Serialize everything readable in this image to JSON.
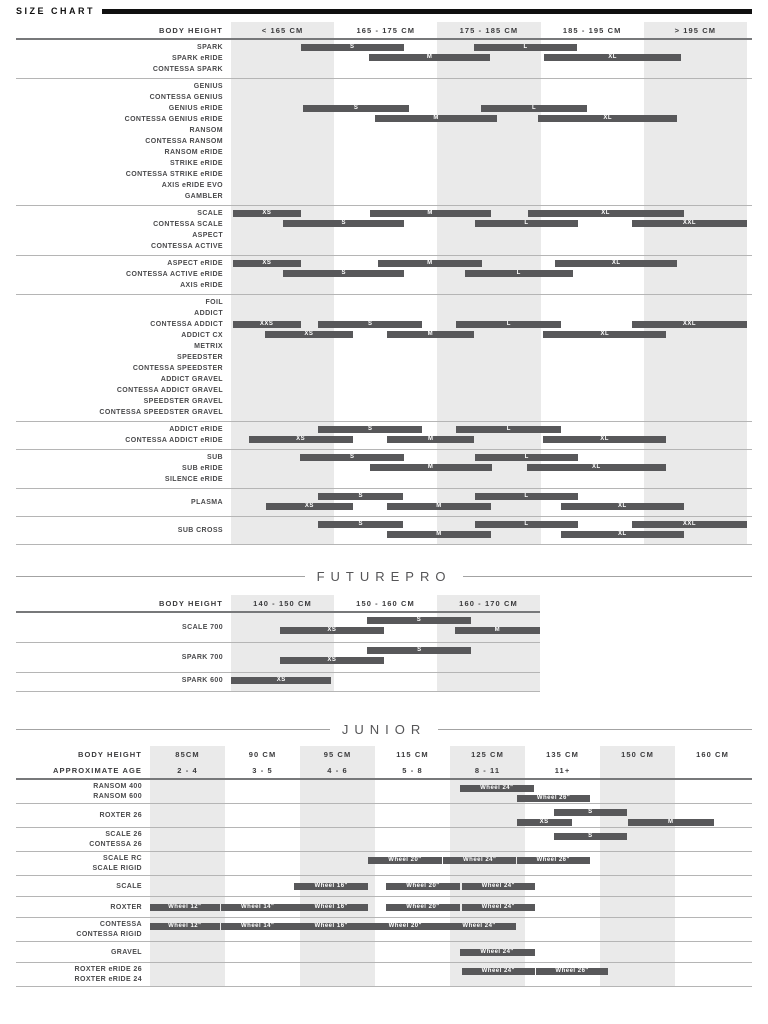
{
  "page": {
    "title": "SIZE CHART"
  },
  "chart_data": {
    "type": "table",
    "description": "Bike frame size ranges (gantt-style bars) per model family versus rider body height",
    "colors": {
      "bar": "#58585a",
      "stripe": "#eaeaea",
      "rule_dark": "#77787a",
      "rule_light": "#b5b5b5",
      "banner": "#101010"
    },
    "sections": [
      {
        "id": "main",
        "title": "",
        "header": {
          "rows": [
            {
              "label": "BODY HEIGHT",
              "values": [
                "< 165 CM",
                "165 - 175 CM",
                "175 - 185 CM",
                "185 - 195 CM",
                "> 195 CM"
              ]
            }
          ]
        },
        "groups": [
          {
            "models": [
              "SPARK",
              "SPARK eRIDE",
              "CONTESSA SPARK"
            ],
            "offset": 0,
            "bars": [
              {
                "size": "S",
                "row": 0,
                "from": 13.5,
                "to": 33.5
              },
              {
                "size": "M",
                "row": 1,
                "from": 26.8,
                "to": 50.2
              },
              {
                "size": "L",
                "row": 0,
                "from": 47.1,
                "to": 67.1
              },
              {
                "size": "XL",
                "row": 1,
                "from": 60.7,
                "to": 87.2
              }
            ]
          },
          {
            "models": [
              "GENIUS",
              "CONTESSA GENIUS",
              "GENIUS eRIDE",
              "CONTESSA GENIUS eRIDE",
              "RANSOM",
              "CONTESSA RANSOM",
              "RANSOM eRIDE",
              "STRIKE eRIDE",
              "CONTESSA STRIKE eRIDE",
              "AXIS eRIDE EVO",
              "GAMBLER"
            ],
            "offset": 2,
            "bars": [
              {
                "size": "S",
                "row": 0,
                "from": 14.0,
                "to": 34.5
              },
              {
                "size": "M",
                "row": 1,
                "from": 28.0,
                "to": 51.5
              },
              {
                "size": "L",
                "row": 0,
                "from": 48.5,
                "to": 69.0
              },
              {
                "size": "XL",
                "row": 1,
                "from": 59.5,
                "to": 86.5
              }
            ]
          },
          {
            "models": [
              "SCALE",
              "CONTESSA SCALE",
              "ASPECT",
              "CONTESSA ACTIVE"
            ],
            "offset": 0,
            "bars": [
              {
                "size": "XS",
                "row": 0,
                "from": 0.4,
                "to": 13.5
              },
              {
                "size": "S",
                "row": 1,
                "from": 10.1,
                "to": 33.6
              },
              {
                "size": "M",
                "row": 0,
                "from": 26.9,
                "to": 50.3
              },
              {
                "size": "L",
                "row": 1,
                "from": 47.3,
                "to": 67.2
              },
              {
                "size": "XL",
                "row": 0,
                "from": 57.5,
                "to": 87.7
              },
              {
                "size": "XXL",
                "row": 1,
                "from": 77.7,
                "to": 100
              }
            ]
          },
          {
            "models": [
              "ASPECT eRIDE",
              "CONTESSA ACTIVE eRIDE",
              "AXIS eRIDE"
            ],
            "offset": 0,
            "bars": [
              {
                "size": "XS",
                "row": 0,
                "from": 0.4,
                "to": 13.5
              },
              {
                "size": "S",
                "row": 1,
                "from": 10.1,
                "to": 33.6
              },
              {
                "size": "M",
                "row": 0,
                "from": 28.4,
                "to": 48.7
              },
              {
                "size": "L",
                "row": 1,
                "from": 45.3,
                "to": 66.2
              },
              {
                "size": "XL",
                "row": 0,
                "from": 62.8,
                "to": 86.5
              }
            ]
          },
          {
            "models": [
              "FOIL",
              "ADDICT",
              "CONTESSA ADDICT",
              "ADDICT CX",
              "METRIX",
              "SPEEDSTER",
              "CONTESSA SPEEDSTER",
              "ADDICT GRAVEL",
              "CONTESSA ADDICT GRAVEL",
              "SPEEDSTER GRAVEL",
              "CONTESSA SPEEDSTER GRAVEL"
            ],
            "offset": 2,
            "bars": [
              {
                "size": "XXS",
                "row": 0,
                "from": 0.3,
                "to": 13.5
              },
              {
                "size": "XS",
                "row": 1,
                "from": 6.6,
                "to": 23.6
              },
              {
                "size": "S",
                "row": 0,
                "from": 16.9,
                "to": 37.1
              },
              {
                "size": "M",
                "row": 1,
                "from": 30.3,
                "to": 47.0
              },
              {
                "size": "L",
                "row": 0,
                "from": 43.7,
                "to": 64.0
              },
              {
                "size": "XL",
                "row": 1,
                "from": 60.5,
                "to": 84.4
              },
              {
                "size": "XXL",
                "row": 0,
                "from": 77.7,
                "to": 100
              }
            ]
          },
          {
            "models": [
              "ADDICT eRIDE",
              "CONTESSA ADDICT eRIDE"
            ],
            "offset": 0,
            "bars": [
              {
                "size": "S",
                "row": 0,
                "from": 16.9,
                "to": 37.1
              },
              {
                "size": "XS",
                "row": 1,
                "from": 3.4,
                "to": 23.6
              },
              {
                "size": "M",
                "row": 1,
                "from": 30.3,
                "to": 47.1
              },
              {
                "size": "L",
                "row": 0,
                "from": 43.7,
                "to": 64.0
              },
              {
                "size": "XL",
                "row": 1,
                "from": 60.5,
                "to": 84.3
              }
            ]
          },
          {
            "models": [
              "SUB",
              "SUB eRIDE",
              "SILENCE eRIDE"
            ],
            "offset": 0,
            "bars": [
              {
                "size": "S",
                "row": 0,
                "from": 13.4,
                "to": 33.6
              },
              {
                "size": "M",
                "row": 1,
                "from": 26.9,
                "to": 50.5
              },
              {
                "size": "L",
                "row": 0,
                "from": 47.3,
                "to": 67.3
              },
              {
                "size": "XL",
                "row": 1,
                "from": 57.3,
                "to": 84.3
              }
            ]
          },
          {
            "models": [
              "PLASMA"
            ],
            "offset": 0,
            "center": true,
            "bars": [
              {
                "size": "S",
                "row": 0,
                "from": 16.9,
                "to": 33.4
              },
              {
                "size": "XS",
                "row": 1,
                "from": 6.8,
                "to": 23.6
              },
              {
                "size": "M",
                "row": 1,
                "from": 30.3,
                "to": 50.3
              },
              {
                "size": "L",
                "row": 0,
                "from": 47.3,
                "to": 67.2
              },
              {
                "size": "XL",
                "row": 1,
                "from": 64.0,
                "to": 87.7
              }
            ]
          },
          {
            "models": [
              "SUB CROSS"
            ],
            "offset": 0,
            "center": true,
            "bars": [
              {
                "size": "S",
                "row": 0,
                "from": 16.9,
                "to": 33.4
              },
              {
                "size": "M",
                "row": 1,
                "from": 30.3,
                "to": 50.3
              },
              {
                "size": "L",
                "row": 0,
                "from": 47.3,
                "to": 67.2
              },
              {
                "size": "XL",
                "row": 1,
                "from": 64.0,
                "to": 87.7
              },
              {
                "size": "XXL",
                "row": 0,
                "from": 77.7,
                "to": 100
              }
            ]
          }
        ]
      },
      {
        "id": "futurepro",
        "title": "FUTUREPRO",
        "header": {
          "rows": [
            {
              "label": "BODY HEIGHT",
              "values": [
                "140 - 150 CM",
                "150 - 160 CM",
                "160 - 170 CM"
              ]
            }
          ]
        },
        "groups": [
          {
            "models": [
              "SCALE 700"
            ],
            "offset": 0,
            "center": true,
            "bars": [
              {
                "size": "S",
                "row": 0,
                "from": 44.1,
                "to": 77.6
              },
              {
                "size": "XS",
                "row": 1,
                "from": 15.8,
                "to": 49.5
              },
              {
                "size": "M",
                "row": 1,
                "from": 72.4,
                "to": 100
              }
            ]
          },
          {
            "models": [
              "SPARK 700"
            ],
            "offset": 0,
            "center": true,
            "bars": [
              {
                "size": "S",
                "row": 0,
                "from": 44.1,
                "to": 77.8
              },
              {
                "size": "XS",
                "row": 1,
                "from": 15.8,
                "to": 49.5
              }
            ]
          },
          {
            "models": [
              "SPARK 600"
            ],
            "offset": 0,
            "bars": [
              {
                "size": "XS",
                "row": 0,
                "from": 0,
                "to": 32.5
              }
            ]
          }
        ]
      },
      {
        "id": "junior",
        "title": "JUNIOR",
        "header": {
          "rows": [
            {
              "label": "BODY HEIGHT",
              "values": [
                "85CM",
                "90 CM",
                "95 CM",
                "115 CM",
                "125 CM",
                "135 CM",
                "150 CM",
                "160 CM"
              ]
            },
            {
              "label": "APPROXIMATE AGE",
              "values": [
                "2 - 4",
                "3 - 5",
                "4 - 6",
                "5 - 8",
                "8 - 11",
                "11+",
                "",
                ""
              ]
            }
          ]
        },
        "groups": [
          {
            "models": [
              "RANSOM 400",
              "RANSOM 600"
            ],
            "offset": 0,
            "bars": [
              {
                "size": "Wheel 24\"",
                "row": 0,
                "from": 51.6,
                "to": 64.0
              },
              {
                "size": "Wheel 26\"",
                "row": 1,
                "from": 61.1,
                "to": 73.4
              }
            ]
          },
          {
            "models": [
              "ROXTER 26"
            ],
            "offset": 0,
            "center": true,
            "bars": [
              {
                "size": "S",
                "row": 0,
                "from": 67.3,
                "to": 79.5
              },
              {
                "size": "XS",
                "row": 1,
                "from": 61.1,
                "to": 70.3
              },
              {
                "size": "M",
                "row": 1,
                "from": 79.6,
                "to": 94.0
              }
            ]
          },
          {
            "models": [
              "SCALE 26",
              "CONTESSA 26"
            ],
            "offset": 0,
            "bars": [
              {
                "size": "S",
                "row": 0,
                "from": 67.3,
                "to": 79.5
              }
            ]
          },
          {
            "models": [
              "SCALE RC",
              "SCALE RIGID"
            ],
            "offset": 0,
            "bars": [
              {
                "size": "Wheel 20\"",
                "row": 0,
                "from": 36.4,
                "to": 48.6
              },
              {
                "size": "Wheel 24\"",
                "row": 0,
                "from": 48.9,
                "to": 61.0
              },
              {
                "size": "Wheel 26\"",
                "row": 0,
                "from": 61.1,
                "to": 73.3
              }
            ]
          },
          {
            "models": [
              "SCALE"
            ],
            "offset": 0,
            "bars": [
              {
                "size": "Wheel 16\"",
                "row": 0,
                "from": 24.0,
                "to": 36.4
              },
              {
                "size": "Wheel 20\"",
                "row": 0,
                "from": 39.4,
                "to": 51.6
              },
              {
                "size": "Wheel 24\"",
                "row": 0,
                "from": 52.0,
                "to": 64.1
              }
            ]
          },
          {
            "models": [
              "ROXTER"
            ],
            "offset": 0,
            "bars": [
              {
                "size": "Wheel 12\"",
                "row": 0,
                "from": 0,
                "to": 11.6
              },
              {
                "size": "Wheel 14\"",
                "row": 0,
                "from": 11.9,
                "to": 24.0
              },
              {
                "size": "Wheel 16\"",
                "row": 0,
                "from": 24.0,
                "to": 36.4
              },
              {
                "size": "Wheel 20\"",
                "row": 0,
                "from": 39.4,
                "to": 51.6
              },
              {
                "size": "Wheel 24\"",
                "row": 0,
                "from": 52.0,
                "to": 64.1
              }
            ]
          },
          {
            "models": [
              "CONTESSA",
              "CONTESSA RIGID"
            ],
            "offset": 0,
            "bars": [
              {
                "size": "Wheel 12\"",
                "row": 0,
                "from": 0,
                "to": 11.6
              },
              {
                "size": "Wheel 14\"",
                "row": 0,
                "from": 11.9,
                "to": 24.0
              },
              {
                "size": "Wheel 16\"",
                "row": 0,
                "from": 24.0,
                "to": 36.4
              },
              {
                "size": "Wheel 20\"",
                "row": 0,
                "from": 36.4,
                "to": 48.7
              },
              {
                "size": "Wheel 24\"",
                "row": 0,
                "from": 48.7,
                "to": 61.0
              }
            ]
          },
          {
            "models": [
              "GRAVEL"
            ],
            "offset": 0,
            "bars": [
              {
                "size": "Wheel 24\"",
                "row": 0,
                "from": 51.6,
                "to": 64.1
              }
            ]
          },
          {
            "models": [
              "ROXTER eRIDE 26",
              "ROXTER eRIDE 24"
            ],
            "offset": 0,
            "bars": [
              {
                "size": "Wheel 24\"",
                "row": 0,
                "from": 52.0,
                "to": 64.1
              },
              {
                "size": "Wheel 26\"",
                "row": 0,
                "from": 64.3,
                "to": 76.4
              }
            ]
          }
        ]
      }
    ]
  }
}
